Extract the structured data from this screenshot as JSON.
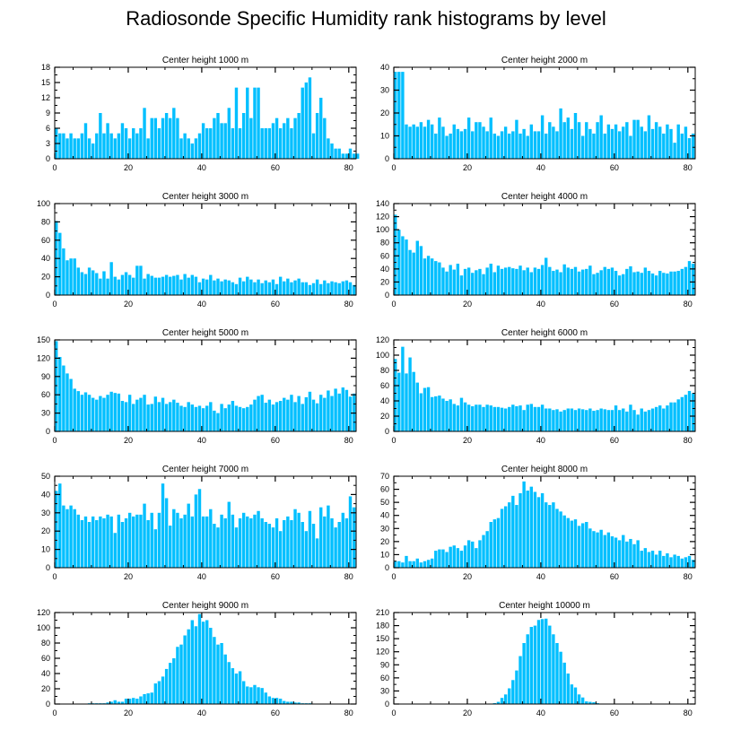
{
  "title": "Radiosonde Specific Humidity rank histograms by level",
  "style": {
    "bar_color": "#00BFFF",
    "axis_color": "#000000",
    "background": "#FFFFFF"
  },
  "chart_data": [
    {
      "type": "bar",
      "title": "Center height 1000 m",
      "x_start": 0,
      "xlim": [
        0,
        82
      ],
      "xticks": [
        0,
        20,
        40,
        60,
        80
      ],
      "ylim": [
        0,
        18
      ],
      "yticks": [
        0,
        3,
        6,
        9,
        12,
        15,
        18
      ],
      "values": [
        6,
        5,
        5,
        4,
        5,
        4,
        4,
        5,
        7,
        4,
        3,
        5,
        9,
        5,
        7,
        5,
        4,
        5,
        7,
        6,
        4,
        6,
        5,
        6,
        10,
        4,
        8,
        8,
        6,
        8,
        9,
        8,
        10,
        8,
        4,
        5,
        4,
        3,
        4,
        5,
        7,
        6,
        6,
        8,
        9,
        7,
        7,
        10,
        6,
        14,
        6,
        9,
        14,
        8,
        14,
        14,
        6,
        6,
        6,
        7,
        8,
        6,
        7,
        8,
        6,
        8,
        9,
        14,
        15,
        16,
        5,
        9,
        12,
        8,
        4,
        3,
        2,
        2,
        1,
        1,
        2,
        1,
        1
      ]
    },
    {
      "type": "bar",
      "title": "Center height 2000 m",
      "x_start": 0,
      "xlim": [
        0,
        82
      ],
      "xticks": [
        0,
        20,
        40,
        60,
        80
      ],
      "ylim": [
        0,
        40
      ],
      "yticks": [
        0,
        10,
        20,
        30,
        40
      ],
      "values": [
        38,
        38,
        38,
        15,
        14,
        15,
        14,
        16,
        14,
        17,
        15,
        11,
        18,
        14,
        10,
        11,
        15,
        13,
        12,
        13,
        18,
        12,
        16,
        16,
        14,
        12,
        18,
        11,
        10,
        12,
        14,
        11,
        12,
        17,
        11,
        13,
        10,
        15,
        12,
        12,
        19,
        11,
        16,
        14,
        12,
        22,
        16,
        18,
        13,
        20,
        16,
        10,
        16,
        13,
        11,
        16,
        19,
        11,
        15,
        13,
        15,
        12,
        14,
        16,
        10,
        17,
        17,
        14,
        12,
        19,
        13,
        16,
        14,
        11,
        15,
        13,
        7,
        15,
        11,
        14,
        9,
        11
      ]
    },
    {
      "type": "bar",
      "title": "Center height 3000 m",
      "x_start": 0,
      "xlim": [
        0,
        82
      ],
      "xticks": [
        0,
        20,
        40,
        60,
        80
      ],
      "ylim": [
        0,
        100
      ],
      "yticks": [
        0,
        20,
        40,
        60,
        80,
        100
      ],
      "values": [
        81,
        68,
        51,
        38,
        40,
        40,
        30,
        25,
        23,
        30,
        27,
        24,
        18,
        26,
        18,
        36,
        20,
        17,
        22,
        25,
        22,
        19,
        32,
        32,
        18,
        23,
        21,
        19,
        19,
        20,
        22,
        20,
        21,
        22,
        17,
        23,
        19,
        22,
        20,
        14,
        18,
        17,
        22,
        16,
        18,
        15,
        17,
        16,
        14,
        12,
        19,
        15,
        20,
        17,
        14,
        17,
        13,
        16,
        14,
        17,
        12,
        20,
        15,
        18,
        14,
        16,
        18,
        14,
        14,
        11,
        13,
        17,
        12,
        16,
        13,
        15,
        14,
        13,
        15,
        16,
        14,
        11
      ]
    },
    {
      "type": "bar",
      "title": "Center height 4000 m",
      "x_start": 0,
      "xlim": [
        0,
        82
      ],
      "xticks": [
        0,
        20,
        40,
        60,
        80
      ],
      "ylim": [
        0,
        140
      ],
      "yticks": [
        0,
        20,
        40,
        60,
        80,
        100,
        120,
        140
      ],
      "values": [
        123,
        100,
        90,
        85,
        69,
        65,
        83,
        75,
        56,
        60,
        56,
        52,
        50,
        42,
        36,
        46,
        39,
        48,
        30,
        40,
        42,
        34,
        38,
        40,
        32,
        42,
        48,
        35,
        45,
        40,
        42,
        43,
        41,
        40,
        45,
        38,
        42,
        35,
        42,
        40,
        46,
        57,
        43,
        37,
        39,
        35,
        47,
        42,
        40,
        43,
        36,
        39,
        40,
        45,
        32,
        34,
        38,
        43,
        40,
        42,
        37,
        30,
        32,
        40,
        44,
        35,
        36,
        34,
        42,
        37,
        33,
        30,
        37,
        34,
        33,
        36,
        36,
        37,
        40,
        43,
        52,
        48
      ]
    },
    {
      "type": "bar",
      "title": "Center height 5000 m",
      "x_start": 0,
      "xlim": [
        0,
        82
      ],
      "xticks": [
        0,
        20,
        40,
        60,
        80
      ],
      "ylim": [
        0,
        150
      ],
      "yticks": [
        0,
        30,
        60,
        90,
        120,
        150
      ],
      "values": [
        148,
        122,
        108,
        95,
        86,
        70,
        66,
        60,
        64,
        60,
        55,
        52,
        58,
        55,
        60,
        65,
        63,
        62,
        50,
        48,
        60,
        45,
        52,
        55,
        60,
        44,
        45,
        57,
        48,
        55,
        45,
        48,
        52,
        47,
        42,
        40,
        48,
        44,
        40,
        42,
        38,
        42,
        48,
        34,
        30,
        45,
        38,
        44,
        50,
        42,
        40,
        38,
        40,
        44,
        52,
        58,
        60,
        47,
        52,
        44,
        48,
        50,
        55,
        52,
        60,
        48,
        58,
        45,
        56,
        65,
        52,
        46,
        60,
        55,
        67,
        58,
        70,
        62,
        72,
        68,
        57,
        62
      ]
    },
    {
      "type": "bar",
      "title": "Center height 6000 m",
      "x_start": 0,
      "xlim": [
        0,
        82
      ],
      "xticks": [
        0,
        20,
        40,
        60,
        80
      ],
      "ylim": [
        0,
        120
      ],
      "yticks": [
        0,
        20,
        40,
        60,
        80,
        100,
        120
      ],
      "values": [
        95,
        77,
        111,
        76,
        97,
        78,
        64,
        50,
        57,
        58,
        45,
        46,
        47,
        43,
        40,
        42,
        36,
        34,
        44,
        38,
        35,
        33,
        35,
        35,
        32,
        35,
        34,
        32,
        32,
        31,
        30,
        32,
        35,
        33,
        34,
        28,
        35,
        36,
        32,
        32,
        35,
        30,
        30,
        28,
        29,
        26,
        28,
        30,
        30,
        28,
        30,
        29,
        28,
        30,
        27,
        28,
        30,
        29,
        28,
        28,
        34,
        28,
        30,
        26,
        35,
        28,
        22,
        30,
        26,
        28,
        30,
        32,
        34,
        30,
        34,
        38,
        38,
        42,
        45,
        48,
        53,
        50
      ]
    },
    {
      "type": "bar",
      "title": "Center height 7000 m",
      "x_start": 0,
      "xlim": [
        0,
        82
      ],
      "xticks": [
        0,
        20,
        40,
        60,
        80
      ],
      "ylim": [
        0,
        50
      ],
      "yticks": [
        0,
        10,
        20,
        30,
        40,
        50
      ],
      "values": [
        42,
        46,
        34,
        32,
        34,
        32,
        29,
        26,
        28,
        25,
        28,
        26,
        28,
        27,
        29,
        28,
        19,
        29,
        25,
        27,
        30,
        28,
        29,
        29,
        35,
        26,
        30,
        21,
        30,
        46,
        38,
        23,
        32,
        30,
        27,
        29,
        35,
        28,
        40,
        43,
        28,
        28,
        32,
        24,
        22,
        29,
        27,
        36,
        29,
        22,
        27,
        30,
        28,
        27,
        29,
        31,
        27,
        25,
        24,
        22,
        27,
        20,
        26,
        28,
        26,
        32,
        30,
        25,
        20,
        31,
        24,
        16,
        33,
        28,
        34,
        27,
        22,
        25,
        30,
        27,
        39,
        33
      ]
    },
    {
      "type": "bar",
      "title": "Center height 8000 m",
      "x_start": 0,
      "xlim": [
        0,
        82
      ],
      "xticks": [
        0,
        20,
        40,
        60,
        80
      ],
      "ylim": [
        0,
        70
      ],
      "yticks": [
        0,
        10,
        20,
        30,
        40,
        50,
        60,
        70
      ],
      "values": [
        5,
        5,
        4,
        9,
        5,
        5,
        7,
        4,
        5,
        6,
        7,
        13,
        14,
        14,
        12,
        16,
        17,
        15,
        13,
        17,
        21,
        20,
        15,
        21,
        25,
        28,
        35,
        37,
        38,
        45,
        47,
        50,
        55,
        48,
        57,
        66,
        59,
        62,
        58,
        54,
        57,
        50,
        48,
        50,
        45,
        43,
        40,
        38,
        36,
        37,
        32,
        34,
        35,
        30,
        28,
        27,
        29,
        25,
        27,
        24,
        23,
        21,
        25,
        20,
        22,
        18,
        21,
        13,
        15,
        12,
        13,
        10,
        13,
        9,
        11,
        8,
        10,
        9,
        7,
        8,
        9,
        6
      ]
    },
    {
      "type": "bar",
      "title": "Center height 9000 m",
      "x_start": 0,
      "xlim": [
        0,
        82
      ],
      "xticks": [
        0,
        20,
        40,
        60,
        80
      ],
      "ylim": [
        0,
        120
      ],
      "yticks": [
        0,
        20,
        40,
        60,
        80,
        100,
        120
      ],
      "values": [
        0,
        0,
        0,
        0,
        0,
        0,
        0,
        0,
        0,
        1,
        1,
        1,
        1,
        1,
        2,
        3,
        5,
        3,
        3,
        7,
        7,
        8,
        7,
        10,
        13,
        14,
        15,
        27,
        30,
        36,
        46,
        54,
        60,
        75,
        78,
        90,
        98,
        110,
        102,
        118,
        108,
        110,
        100,
        88,
        78,
        80,
        65,
        55,
        47,
        40,
        43,
        30,
        23,
        22,
        25,
        22,
        21,
        15,
        10,
        8,
        8,
        7,
        4,
        3,
        3,
        2,
        2,
        1,
        1,
        1,
        0,
        0,
        0,
        0,
        0,
        0,
        0,
        0,
        0,
        0,
        0,
        0
      ]
    },
    {
      "type": "bar",
      "title": "Center height 10000 m",
      "x_start": 0,
      "xlim": [
        0,
        82
      ],
      "xticks": [
        0,
        20,
        40,
        60,
        80
      ],
      "ylim": [
        0,
        210
      ],
      "yticks": [
        0,
        30,
        60,
        90,
        120,
        150,
        180,
        210
      ],
      "values": [
        0,
        0,
        0,
        0,
        0,
        0,
        0,
        0,
        0,
        0,
        0,
        0,
        0,
        0,
        0,
        0,
        0,
        0,
        0,
        0,
        0,
        0,
        0,
        0,
        0,
        0,
        1,
        2,
        5,
        14,
        22,
        36,
        55,
        77,
        110,
        140,
        160,
        177,
        180,
        193,
        195,
        196,
        180,
        160,
        140,
        120,
        95,
        70,
        45,
        38,
        22,
        15,
        6,
        5,
        4,
        2,
        1,
        1,
        1,
        0,
        0,
        0,
        0,
        0,
        0,
        0,
        0,
        0,
        0,
        0,
        0,
        0,
        0,
        0,
        0,
        0,
        0,
        0,
        0,
        0,
        0,
        0
      ]
    }
  ]
}
